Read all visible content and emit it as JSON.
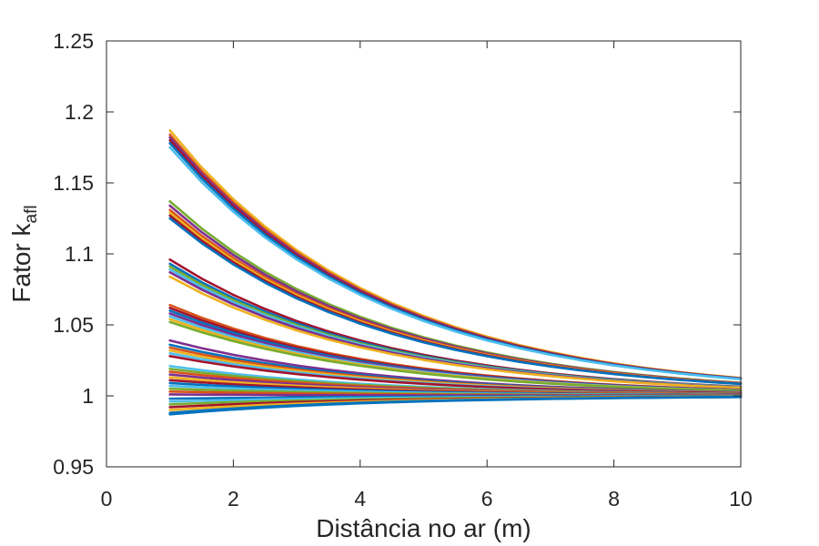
{
  "chart_data": {
    "type": "line",
    "title": "",
    "xlabel": "Distância no ar (m)",
    "ylabel_main": "Fator k",
    "ylabel_sub": "afl",
    "xlim": [
      0,
      10
    ],
    "ylim": [
      0.95,
      1.25
    ],
    "x_ticks": [
      "0",
      "2",
      "4",
      "6",
      "8",
      "10"
    ],
    "y_ticks": [
      "0.95",
      "1",
      "1.05",
      "1.1",
      "1.15",
      "1.2",
      "1.25"
    ],
    "grid": false,
    "legend": "none",
    "x": [
      1,
      1.5,
      2,
      2.5,
      3,
      3.5,
      4,
      4.5,
      5,
      5.5,
      6,
      6.5,
      7,
      7.5,
      8,
      8.5,
      9,
      9.5,
      10
    ],
    "series_note": "Each curve: y = 1 + d * exp(-0.3 * (x - 1)); values below are the start value d at x = 1",
    "decay_rate": 0.3,
    "series": [
      {
        "start": 0.187,
        "color": "#EDB120"
      },
      {
        "start": 0.184,
        "color": "#D95319"
      },
      {
        "start": 0.182,
        "color": "#7E2F8E"
      },
      {
        "start": 0.18,
        "color": "#A2142F"
      },
      {
        "start": 0.178,
        "color": "#0072BD"
      },
      {
        "start": 0.175,
        "color": "#4DBEEE"
      },
      {
        "start": 0.137,
        "color": "#77AC30"
      },
      {
        "start": 0.134,
        "color": "#7E2F8E"
      },
      {
        "start": 0.131,
        "color": "#D95319"
      },
      {
        "start": 0.129,
        "color": "#EDB120"
      },
      {
        "start": 0.127,
        "color": "#A2142F"
      },
      {
        "start": 0.125,
        "color": "#0072BD"
      },
      {
        "start": 0.096,
        "color": "#A2142F"
      },
      {
        "start": 0.093,
        "color": "#0072BD"
      },
      {
        "start": 0.091,
        "color": "#77AC30"
      },
      {
        "start": 0.089,
        "color": "#4DBEEE"
      },
      {
        "start": 0.087,
        "color": "#7E2F8E"
      },
      {
        "start": 0.084,
        "color": "#EDB120"
      },
      {
        "start": 0.064,
        "color": "#D95319"
      },
      {
        "start": 0.062,
        "color": "#A2142F"
      },
      {
        "start": 0.06,
        "color": "#0072BD"
      },
      {
        "start": 0.058,
        "color": "#7E2F8E"
      },
      {
        "start": 0.056,
        "color": "#4DBEEE"
      },
      {
        "start": 0.054,
        "color": "#EDB120"
      },
      {
        "start": 0.052,
        "color": "#77AC30"
      },
      {
        "start": 0.039,
        "color": "#7E2F8E"
      },
      {
        "start": 0.036,
        "color": "#0072BD"
      },
      {
        "start": 0.034,
        "color": "#D95319"
      },
      {
        "start": 0.032,
        "color": "#EDB120"
      },
      {
        "start": 0.03,
        "color": "#4DBEEE"
      },
      {
        "start": 0.028,
        "color": "#A2142F"
      },
      {
        "start": 0.021,
        "color": "#4DBEEE"
      },
      {
        "start": 0.019,
        "color": "#77AC30"
      },
      {
        "start": 0.017,
        "color": "#D95319"
      },
      {
        "start": 0.015,
        "color": "#7E2F8E"
      },
      {
        "start": 0.013,
        "color": "#EDB120"
      },
      {
        "start": 0.011,
        "color": "#A2142F"
      },
      {
        "start": 0.009,
        "color": "#0072BD"
      },
      {
        "start": 0.007,
        "color": "#4DBEEE"
      },
      {
        "start": 0.005,
        "color": "#77AC30"
      },
      {
        "start": 0.003,
        "color": "#D95319"
      },
      {
        "start": 0.001,
        "color": "#7E2F8E"
      },
      {
        "start": -0.002,
        "color": "#0072BD"
      },
      {
        "start": -0.004,
        "color": "#4DBEEE"
      },
      {
        "start": -0.006,
        "color": "#77AC30"
      },
      {
        "start": -0.008,
        "color": "#A2142F"
      },
      {
        "start": -0.01,
        "color": "#EDB120"
      },
      {
        "start": -0.012,
        "color": "#0072BD"
      },
      {
        "start": -0.013,
        "color": "#0072BD"
      }
    ]
  }
}
